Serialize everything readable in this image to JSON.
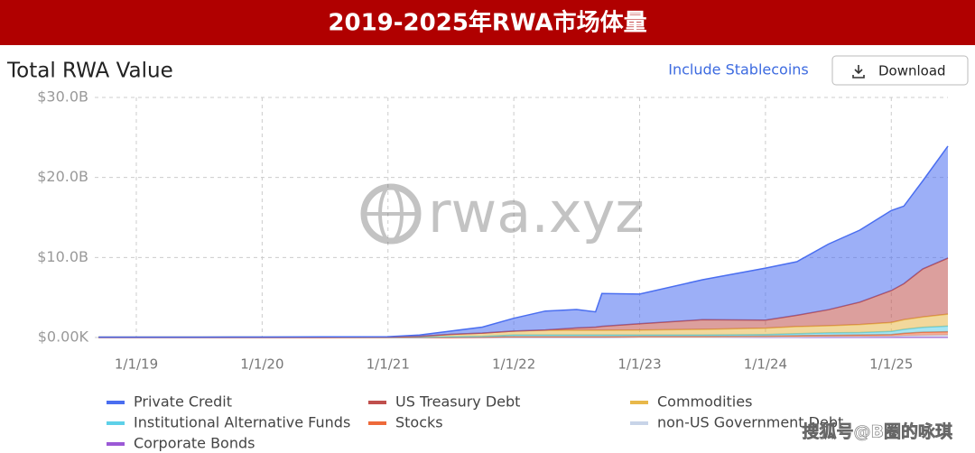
{
  "header": {
    "title": "2019-2025年RWA市场体量"
  },
  "toolbar": {
    "link": "Include Stablecoins",
    "button": "Download"
  },
  "watermarks": [
    "rwa.xyz",
    "搜狐号@B圈的咏琪"
  ],
  "chart_data": {
    "type": "stacked-area",
    "title": "Total RWA Value",
    "x": [
      2018.7,
      2019,
      2019.5,
      2020,
      2020.5,
      2021,
      2021.25,
      2021.5,
      2021.75,
      2022,
      2022.25,
      2022.5,
      2022.65,
      2022.7,
      2023,
      2023.5,
      2024,
      2024.25,
      2024.5,
      2024.75,
      2025,
      2025.1,
      2025.25,
      2025.45
    ],
    "xlim": [
      2018.67,
      2025.45
    ],
    "xticks": [
      {
        "value": 2019,
        "label": "1/1/19"
      },
      {
        "value": 2020,
        "label": "1/1/20"
      },
      {
        "value": 2021,
        "label": "1/1/21"
      },
      {
        "value": 2022,
        "label": "1/1/22"
      },
      {
        "value": 2023,
        "label": "1/1/23"
      },
      {
        "value": 2024,
        "label": "1/1/24"
      },
      {
        "value": 2025,
        "label": "1/1/25"
      }
    ],
    "ylim": [
      0,
      30
    ],
    "yticks": [
      {
        "value": 0,
        "label": "$0.00K"
      },
      {
        "value": 10,
        "label": "$10.0B"
      },
      {
        "value": 20,
        "label": "$20.0B"
      },
      {
        "value": 30,
        "label": "$30.0B"
      }
    ],
    "grid": true,
    "series": [
      {
        "name": "Private Credit",
        "color": "#4a6ef0",
        "values": [
          0,
          0,
          0,
          0.01,
          0.03,
          0.03,
          0.15,
          0.4,
          0.75,
          1.6,
          2.35,
          2.3,
          1.9,
          4.1,
          3.7,
          5.0,
          6.5,
          6.7,
          8.2,
          9.0,
          10.0,
          9.7,
          11.0,
          14.0
        ]
      },
      {
        "name": "US Treasury Debt",
        "color": "#c0504d",
        "values": [
          0,
          0,
          0,
          0,
          0,
          0,
          0,
          0,
          0,
          0,
          0.05,
          0.3,
          0.4,
          0.5,
          0.8,
          1.2,
          1.0,
          1.4,
          2.0,
          2.8,
          4.0,
          4.5,
          6.0,
          7.0
        ]
      },
      {
        "name": "Commodities",
        "color": "#e8b84a",
        "values": [
          0,
          0,
          0,
          0,
          0,
          0.02,
          0.1,
          0.3,
          0.4,
          0.5,
          0.6,
          0.6,
          0.6,
          0.6,
          0.6,
          0.7,
          0.8,
          0.9,
          0.9,
          1.0,
          1.1,
          1.2,
          1.3,
          1.5
        ]
      },
      {
        "name": "Institutional Alternative Funds",
        "color": "#5dd0e8",
        "values": [
          0.05,
          0.05,
          0.05,
          0.05,
          0.05,
          0.05,
          0.05,
          0.1,
          0.1,
          0.2,
          0.2,
          0.2,
          0.2,
          0.2,
          0.2,
          0.2,
          0.2,
          0.25,
          0.3,
          0.3,
          0.4,
          0.5,
          0.6,
          0.7
        ]
      },
      {
        "name": "Stocks",
        "color": "#ee6a3a",
        "values": [
          0,
          0,
          0,
          0,
          0,
          0,
          0,
          0,
          0.05,
          0.1,
          0.1,
          0.1,
          0.1,
          0.1,
          0.1,
          0.1,
          0.1,
          0.15,
          0.15,
          0.2,
          0.2,
          0.3,
          0.4,
          0.4
        ]
      },
      {
        "name": "non-US Government Debt",
        "color": "#c8d4e8",
        "values": [
          0,
          0,
          0,
          0,
          0,
          0,
          0,
          0,
          0,
          0,
          0,
          0,
          0,
          0,
          0,
          0,
          0.05,
          0.05,
          0.1,
          0.1,
          0.15,
          0.2,
          0.25,
          0.3
        ]
      },
      {
        "name": "Corporate Bonds",
        "color": "#9b59d6",
        "values": [
          0,
          0,
          0,
          0,
          0,
          0,
          0,
          0,
          0,
          0,
          0,
          0,
          0,
          0,
          0.02,
          0.02,
          0.02,
          0.02,
          0.02,
          0.02,
          0.02,
          0.02,
          0.02,
          0.02
        ]
      }
    ]
  }
}
